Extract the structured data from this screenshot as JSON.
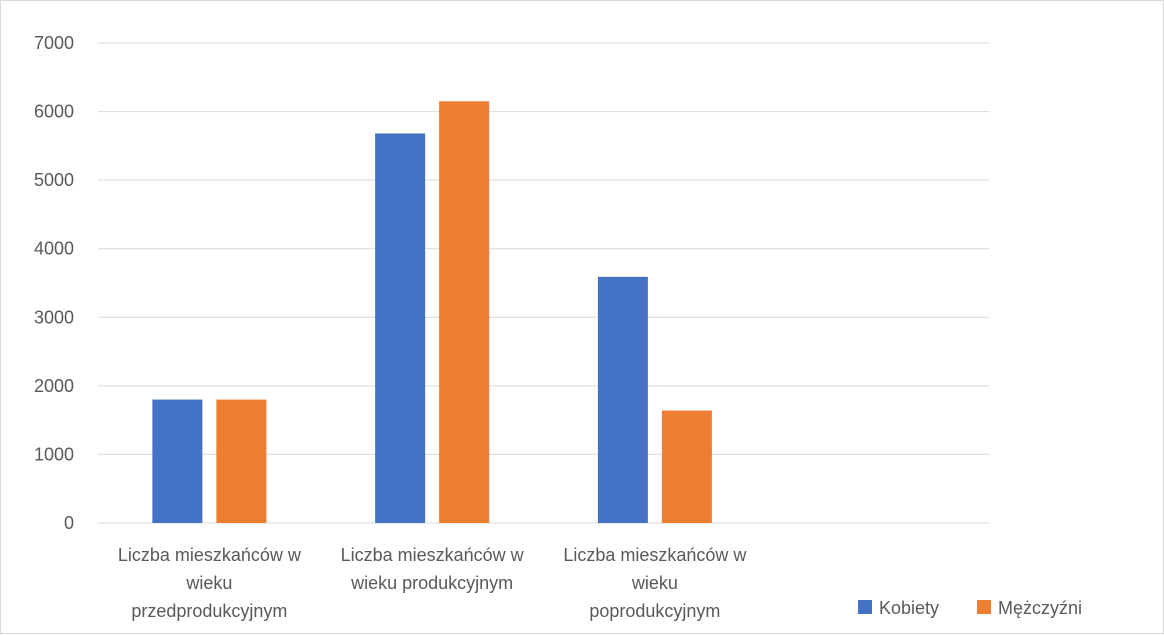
{
  "chart_data": {
    "type": "bar",
    "categories": [
      "Liczba mieszkańców w wieku przedprodukcyjnym",
      "Liczba mieszkańców w wieku produkcyjnym",
      "Liczba mieszkańców w wieku poprodukcyjnym"
    ],
    "category_label_lines": [
      [
        "Liczba mieszkańców w",
        "wieku",
        "przedprodukcyjnym"
      ],
      [
        "Liczba mieszkańców w",
        "wieku produkcyjnym"
      ],
      [
        "Liczba mieszkańców w",
        "wieku",
        "poprodukcyjnym"
      ]
    ],
    "series": [
      {
        "name": "Kobiety",
        "color": "#4472c4",
        "values": [
          1800,
          5680,
          3590
        ]
      },
      {
        "name": "Mężczyźni",
        "color": "#ed7d31",
        "values": [
          1800,
          6150,
          1640
        ]
      }
    ],
    "ylim": [
      0,
      7000
    ],
    "yticks": [
      0,
      1000,
      2000,
      3000,
      4000,
      5000,
      6000,
      7000
    ],
    "grid": true,
    "legend_position": "bottom-right"
  }
}
